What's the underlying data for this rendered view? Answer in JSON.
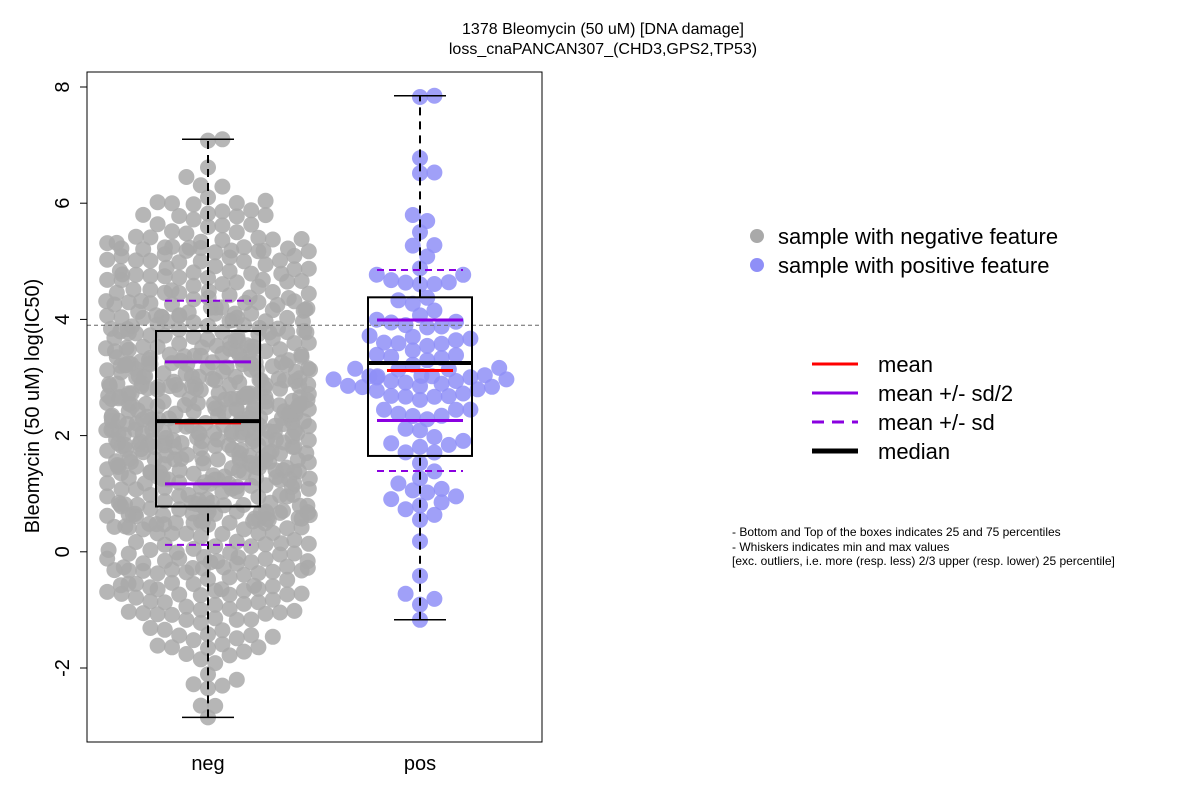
{
  "title_line1": "1378 Bleomycin (50 uM) [DNA damage]",
  "title_line2": "loss_cnaPANCAN307_(CHD3,GPS2,TP53)",
  "colors": {
    "neg_points": "#a9a9a9",
    "pos_points": "#8f8ff7",
    "mean": "#ff0000",
    "sd": "#8a00e0",
    "median": "#000000"
  },
  "legend_points": [
    {
      "label": "sample with negative feature",
      "color": "#a9a9a9"
    },
    {
      "label": "sample with positive feature",
      "color": "#8f8ff7"
    }
  ],
  "legend_lines": [
    {
      "label": "mean",
      "color": "#ff0000",
      "style": "solid",
      "weight": "normal"
    },
    {
      "label": "mean +/- sd/2",
      "color": "#8a00e0",
      "style": "solid",
      "weight": "normal"
    },
    {
      "label": "mean +/- sd",
      "color": "#8a00e0",
      "style": "dashed",
      "weight": "normal"
    },
    {
      "label": "median",
      "color": "#000000",
      "style": "solid",
      "weight": "bold"
    }
  ],
  "notes": [
    "- Bottom and Top of the boxes indicates 25 and 75 percentiles",
    "- Whiskers indicates min and max values",
    "[exc. outliers, i.e. more (resp. less) 2/3 upper (resp. lower) 25 percentile]"
  ],
  "chart_data": {
    "type": "box",
    "title": "1378 Bleomycin (50 uM) [DNA damage]\nloss_cnaPANCAN307_(CHD3,GPS2,TP53)",
    "xlabel": "",
    "ylabel": "Bleomycin (50 uM) log(IC50)",
    "categories": [
      "neg",
      "pos"
    ],
    "ylim": [
      -3.2,
      8.3
    ],
    "yticks": [
      -2,
      0,
      2,
      4,
      6,
      8
    ],
    "yticklabels": [
      "-2",
      "0",
      "2",
      "4",
      "6",
      "8"
    ],
    "reference_line": 3.9,
    "series": [
      {
        "category": "neg",
        "whisker_min": -2.85,
        "q1": 0.78,
        "median": 2.25,
        "q3": 3.8,
        "whisker_max": 7.1,
        "mean": 2.22,
        "mean_minus_half_sd": 1.17,
        "mean_plus_half_sd": 3.27,
        "mean_minus_sd": 0.12,
        "mean_plus_sd": 4.32,
        "n_points": 700
      },
      {
        "category": "pos",
        "whisker_min": -1.17,
        "q1": 1.65,
        "median": 3.25,
        "q3": 4.38,
        "whisker_max": 7.85,
        "mean": 3.12,
        "mean_minus_half_sd": 2.26,
        "mean_plus_half_sd": 3.99,
        "mean_minus_sd": 1.39,
        "mean_plus_sd": 4.85,
        "n_points": 110
      }
    ]
  }
}
